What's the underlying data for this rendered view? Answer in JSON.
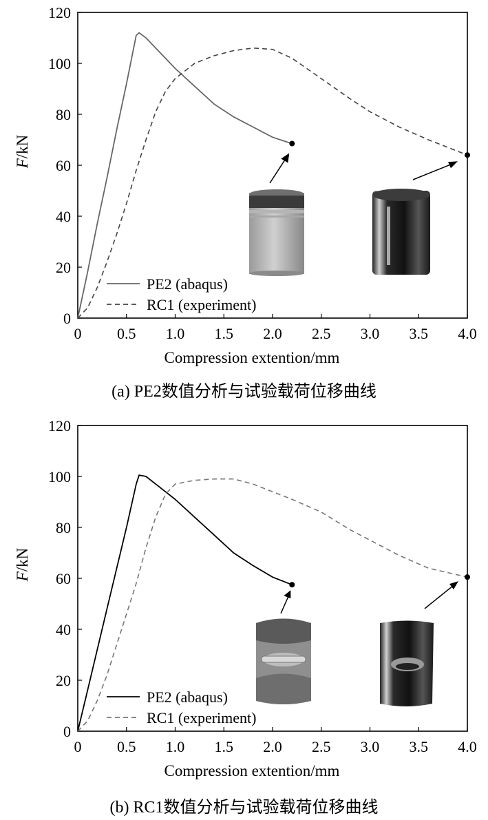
{
  "chart_data": [
    {
      "type": "line",
      "caption": "(a) PE2数值分析与试验载荷位移曲线",
      "xlabel": "Compression extention/mm",
      "ylabel_italic": "F",
      "ylabel_unit": "/kN",
      "xlim": [
        0,
        4.0
      ],
      "ylim": [
        0,
        120
      ],
      "xticks": [
        "0",
        "0.5",
        "1.0",
        "1.5",
        "2.0",
        "2.5",
        "3.0",
        "3.5",
        "4.0"
      ],
      "yticks": [
        "0",
        "20",
        "40",
        "60",
        "80",
        "100",
        "120"
      ],
      "legend_position": "bottom-left",
      "series": [
        {
          "name": "PE2 (abaqus)",
          "style": "solid",
          "color": "#666666",
          "x": [
            0,
            0.1,
            0.2,
            0.3,
            0.4,
            0.5,
            0.6,
            0.63,
            0.7,
            0.8,
            0.9,
            1.0,
            1.2,
            1.4,
            1.6,
            1.8,
            2.0,
            2.2
          ],
          "y": [
            0,
            18,
            37,
            55,
            74,
            92,
            111,
            112,
            110,
            106,
            102,
            98,
            91,
            84,
            79,
            75,
            71,
            68.5
          ]
        },
        {
          "name": "RC1 (experiment)",
          "style": "dashed",
          "color": "#444444",
          "x": [
            0,
            0.1,
            0.2,
            0.3,
            0.4,
            0.5,
            0.6,
            0.7,
            0.8,
            0.9,
            1.0,
            1.2,
            1.4,
            1.6,
            1.8,
            2.0,
            2.2,
            2.5,
            2.8,
            3.0,
            3.3,
            3.6,
            4.0
          ],
          "y": [
            0,
            4,
            12,
            22,
            33,
            45,
            58,
            70,
            81,
            89,
            94,
            100,
            103,
            105,
            106,
            105.5,
            102,
            94,
            86,
            81,
            75,
            70,
            64
          ]
        }
      ],
      "end_markers": [
        {
          "x": 2.2,
          "y": 68.5
        },
        {
          "x": 4.0,
          "y": 64
        }
      ],
      "inset_style": "striped"
    },
    {
      "type": "line",
      "caption": "(b) RC1数值分析与试验载荷位移曲线",
      "xlabel": "Compression extention/mm",
      "ylabel_italic": "F",
      "ylabel_unit": "/kN",
      "xlim": [
        0,
        4.0
      ],
      "ylim": [
        0,
        120
      ],
      "xticks": [
        "0",
        "0.5",
        "1.0",
        "1.5",
        "2.0",
        "2.5",
        "3.0",
        "3.5",
        "4.0"
      ],
      "yticks": [
        "0",
        "20",
        "40",
        "60",
        "80",
        "100",
        "120"
      ],
      "legend_position": "bottom-left",
      "series": [
        {
          "name": "PE2 (abaqus)",
          "style": "solid",
          "color": "#000000",
          "x": [
            0,
            0.1,
            0.2,
            0.3,
            0.4,
            0.5,
            0.6,
            0.63,
            0.7,
            0.8,
            0.9,
            1.0,
            1.2,
            1.4,
            1.6,
            1.8,
            2.0,
            2.2
          ],
          "y": [
            0,
            16,
            32,
            48,
            64,
            80,
            97,
            100.5,
            100,
            97,
            94,
            91,
            84,
            77,
            70,
            65,
            60.5,
            57.5
          ]
        },
        {
          "name": "RC1 (experiment)",
          "style": "dashed",
          "color": "#777777",
          "x": [
            0,
            0.1,
            0.2,
            0.3,
            0.4,
            0.5,
            0.6,
            0.7,
            0.8,
            0.9,
            1.0,
            1.2,
            1.4,
            1.6,
            1.8,
            2.0,
            2.2,
            2.5,
            2.8,
            3.0,
            3.3,
            3.6,
            4.0
          ],
          "y": [
            0,
            4,
            12,
            22,
            34,
            46,
            58,
            72,
            84,
            93,
            97,
            98.5,
            99,
            99,
            97,
            94,
            91,
            86,
            79,
            75,
            69,
            64,
            60.5
          ]
        }
      ],
      "end_markers": [
        {
          "x": 2.2,
          "y": 57.5
        },
        {
          "x": 4.0,
          "y": 60.5
        }
      ],
      "inset_style": "buckled"
    }
  ]
}
